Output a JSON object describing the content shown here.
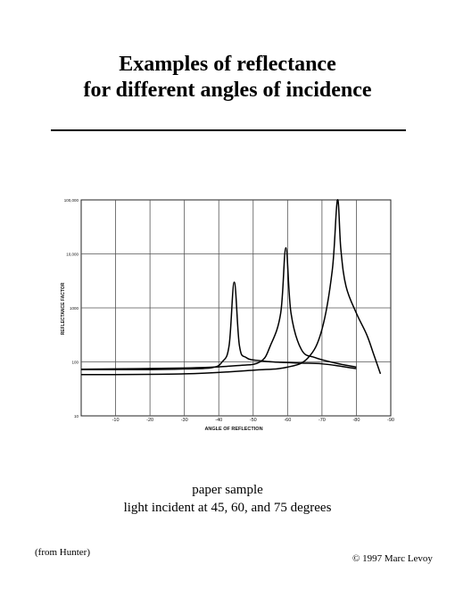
{
  "slide": {
    "title_line1": "Examples of reflectance",
    "title_line2": "for different angles of incidence",
    "caption_line1": "paper sample",
    "caption_line2": "light incident at 45, 60, and 75 degrees",
    "source_note": "(from Hunter)",
    "copyright": "© 1997 Marc Levoy"
  },
  "chart_data": {
    "type": "line",
    "title": "",
    "xlabel": "ANGLE OF REFLECTION",
    "ylabel": "REFLECTANCE FACTOR",
    "x_ticks": [
      {
        "value": -10,
        "label": "-10"
      },
      {
        "value": -20,
        "label": "-20"
      },
      {
        "value": -30,
        "label": "-30"
      },
      {
        "value": -40,
        "label": "-40"
      },
      {
        "value": -50,
        "label": "-50"
      },
      {
        "value": -60,
        "label": "-60"
      },
      {
        "value": -70,
        "label": "-70"
      },
      {
        "value": -80,
        "label": "-80"
      },
      {
        "value": -90,
        "label": "-90"
      }
    ],
    "xlim": [
      0,
      -90
    ],
    "y_scale": "log",
    "y_ticks": [
      {
        "value": 10,
        "label": "10"
      },
      {
        "value": 100,
        "label": "100"
      },
      {
        "value": 1000,
        "label": "1000"
      },
      {
        "value": 10000,
        "label": "10,000"
      },
      {
        "value": 100000,
        "label": "100,000"
      }
    ],
    "ylim": [
      10,
      100000
    ],
    "grid": true,
    "legend": "none",
    "series": [
      {
        "x": [
          0,
          -20,
          -30,
          -38,
          -41,
          -43,
          -44.5,
          -46,
          -48,
          -52,
          -58,
          -64,
          -70,
          -76,
          -80
        ],
        "y": [
          72,
          72,
          74,
          78,
          100,
          200,
          3000,
          200,
          120,
          105,
          98,
          95,
          92,
          82,
          75
        ]
      },
      {
        "x": [
          0,
          -30,
          -45,
          -52,
          -55,
          -58,
          -59.5,
          -61,
          -64,
          -68,
          -74,
          -80
        ],
        "y": [
          73,
          77,
          85,
          100,
          200,
          800,
          13000,
          800,
          170,
          120,
          95,
          80
        ]
      },
      {
        "x": [
          0,
          -30,
          -50,
          -60,
          -66,
          -70,
          -73,
          -74.5,
          -75.5,
          -77,
          -80,
          -83,
          -85,
          -87
        ],
        "y": [
          58,
          60,
          70,
          80,
          120,
          400,
          5000,
          100000,
          12000,
          2500,
          800,
          320,
          140,
          60
        ]
      }
    ]
  }
}
